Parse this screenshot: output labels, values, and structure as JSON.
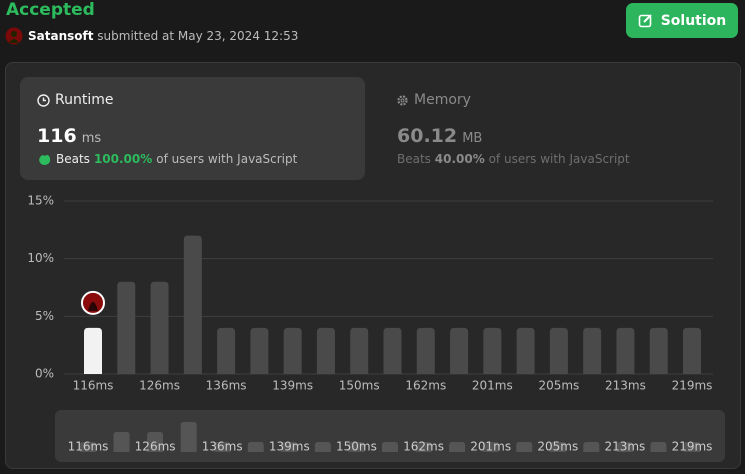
{
  "header": {
    "status": "Accepted",
    "user": "Satansoft",
    "submitted": "submitted at May 23, 2024 12:53",
    "button": "Solution"
  },
  "runtime": {
    "title": "Runtime",
    "value": "116",
    "unit": "ms",
    "beats": "Beats",
    "percent": "100.00%",
    "suffix": "of users with JavaScript"
  },
  "memory": {
    "title": "Memory",
    "value": "60.12",
    "unit": "MB",
    "beats": "Beats",
    "percent": "40.00%",
    "suffix": "of users with JavaScript"
  },
  "chart_data": {
    "type": "bar",
    "categories": [
      "116ms",
      null,
      "126ms",
      null,
      "136ms",
      null,
      "139ms",
      null,
      "150ms",
      null,
      "162ms",
      null,
      "201ms",
      null,
      "205ms",
      null,
      "213ms",
      null,
      "219ms"
    ],
    "values": [
      4,
      8,
      8,
      12,
      4,
      4,
      4,
      4,
      4,
      4,
      4,
      4,
      4,
      4,
      4,
      4,
      4,
      4,
      4
    ],
    "colors": [
      "#f2f2f2",
      "#4a4a4a",
      "#4a4a4a",
      "#4a4a4a",
      "#4a4a4a",
      "#4a4a4a",
      "#4a4a4a",
      "#4a4a4a",
      "#4a4a4a",
      "#4a4a4a",
      "#4a4a4a",
      "#4a4a4a",
      "#4a4a4a",
      "#4a4a4a",
      "#4a4a4a",
      "#4a4a4a",
      "#4a4a4a",
      "#4a4a4a",
      "#4a4a4a"
    ],
    "ylim": [
      0,
      15
    ],
    "yticks": [
      {
        "value": 0,
        "label": "0%"
      },
      {
        "value": 5,
        "label": "5%"
      },
      {
        "value": 10,
        "label": "10%"
      },
      {
        "value": 15,
        "label": "15%"
      }
    ],
    "grid": true
  }
}
